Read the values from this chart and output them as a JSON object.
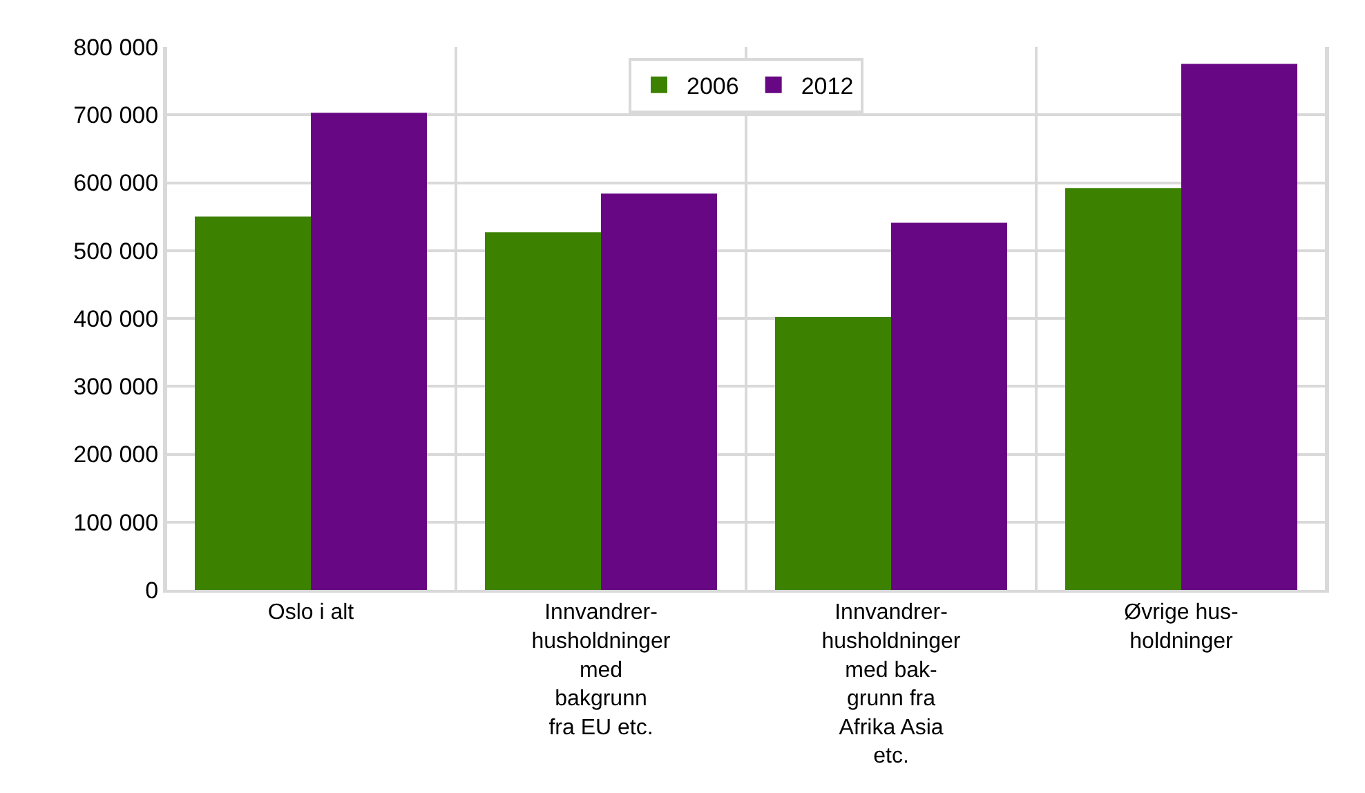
{
  "chart_data": {
    "type": "bar",
    "categories": [
      "Oslo i alt",
      "Innvandrer-husholdninger med bakgrunn fra EU etc.",
      "Innvandrer-husholdninger med bak-grunn fra Afrika Asia etc.",
      "Øvrige hus-holdninger"
    ],
    "series": [
      {
        "name": "2006",
        "color": "#3c8200",
        "values": [
          550000,
          527000,
          402000,
          592000
        ]
      },
      {
        "name": "2012",
        "color": "#680783",
        "values": [
          703000,
          584000,
          541000,
          775000
        ]
      }
    ],
    "ylim": [
      0,
      800000
    ],
    "yticks": [
      {
        "value": 0,
        "label": "0"
      },
      {
        "value": 100000,
        "label": "100 000"
      },
      {
        "value": 200000,
        "label": "200 000"
      },
      {
        "value": 300000,
        "label": "300 000"
      },
      {
        "value": 400000,
        "label": "400 000"
      },
      {
        "value": 500000,
        "label": "500 000"
      },
      {
        "value": 600000,
        "label": "600 000"
      },
      {
        "value": 700000,
        "label": "700 000"
      },
      {
        "value": 800000,
        "label": "800 000"
      }
    ],
    "grid": true,
    "legend": "top"
  }
}
